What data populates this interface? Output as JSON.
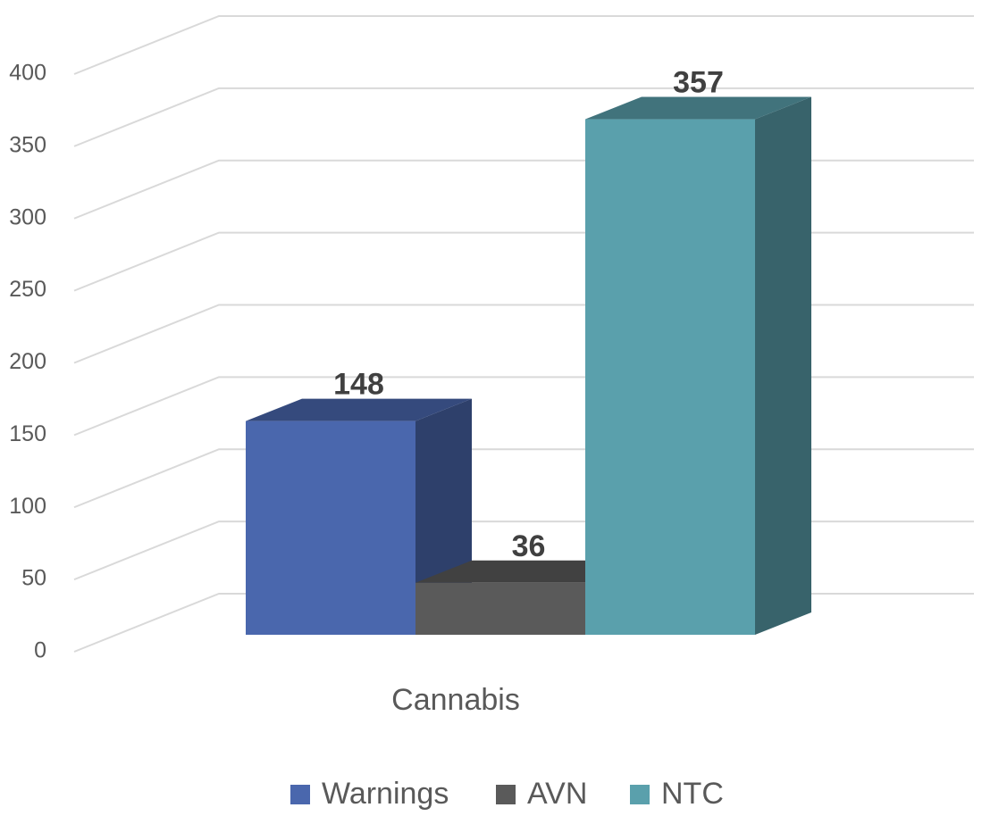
{
  "chart_data": {
    "type": "bar3d",
    "categories": [
      "Cannabis"
    ],
    "series": [
      {
        "name": "Warnings",
        "color": "#4a67ad",
        "values": [
          148
        ]
      },
      {
        "name": "AVN",
        "color": "#5a5a5a",
        "values": [
          36
        ]
      },
      {
        "name": "NTC",
        "color": "#5aa0ac",
        "values": [
          357
        ]
      }
    ],
    "ylim": [
      0,
      400
    ],
    "yticks": [
      0,
      50,
      100,
      150,
      200,
      250,
      300,
      350,
      400
    ],
    "grid": true,
    "legend": "bottom"
  }
}
